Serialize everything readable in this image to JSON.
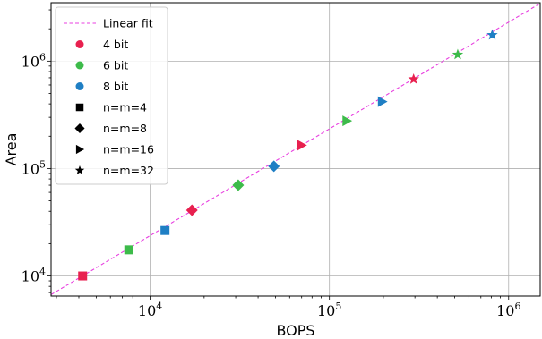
{
  "chart_data": {
    "type": "scatter",
    "xlabel": "BOPS",
    "ylabel": "Area",
    "x_scale": "log",
    "y_scale": "log",
    "xlim": [
      2800,
      1500000
    ],
    "ylim": [
      6500,
      3500000
    ],
    "grid": true,
    "legend_position": "top-left",
    "x_ticks": [
      {
        "value": 10000,
        "label": "10^4"
      },
      {
        "value": 100000,
        "label": "10^5"
      },
      {
        "value": 1000000,
        "label": "10^6"
      }
    ],
    "y_ticks": [
      {
        "value": 10000,
        "label": "10^4"
      },
      {
        "value": 100000,
        "label": "10^5"
      },
      {
        "value": 1000000,
        "label": "10^6"
      }
    ],
    "fit_line": {
      "name": "Linear fit",
      "color": "#e83fe0",
      "x": [
        2800,
        1500000
      ],
      "y": [
        6700,
        3450000
      ]
    },
    "color_legend": [
      {
        "name": "4 bit",
        "color": "#e8204f"
      },
      {
        "name": "6 bit",
        "color": "#3dbb4a"
      },
      {
        "name": "8 bit",
        "color": "#1f7fc4"
      }
    ],
    "marker_legend": [
      {
        "name": "n=m=4",
        "marker": "square"
      },
      {
        "name": "n=m=8",
        "marker": "diamond"
      },
      {
        "name": "n=m=16",
        "marker": "triangle-right"
      },
      {
        "name": "n=m=32",
        "marker": "star"
      }
    ],
    "points": [
      {
        "bits": "4 bit",
        "size": "n=m=4",
        "marker": "square",
        "color": "#e8204f",
        "x": 4200,
        "y": 10000
      },
      {
        "bits": "6 bit",
        "size": "n=m=4",
        "marker": "square",
        "color": "#3dbb4a",
        "x": 7600,
        "y": 17500
      },
      {
        "bits": "8 bit",
        "size": "n=m=4",
        "marker": "square",
        "color": "#1f7fc4",
        "x": 12100,
        "y": 26500
      },
      {
        "bits": "4 bit",
        "size": "n=m=8",
        "marker": "diamond",
        "color": "#e8204f",
        "x": 17100,
        "y": 41000
      },
      {
        "bits": "6 bit",
        "size": "n=m=8",
        "marker": "diamond",
        "color": "#3dbb4a",
        "x": 31000,
        "y": 70000
      },
      {
        "bits": "8 bit",
        "size": "n=m=8",
        "marker": "diamond",
        "color": "#1f7fc4",
        "x": 49000,
        "y": 105000
      },
      {
        "bits": "4 bit",
        "size": "n=m=16",
        "marker": "triangle-right",
        "color": "#e8204f",
        "x": 70000,
        "y": 165000
      },
      {
        "bits": "6 bit",
        "size": "n=m=16",
        "marker": "triangle-right",
        "color": "#3dbb4a",
        "x": 125000,
        "y": 278000
      },
      {
        "bits": "8 bit",
        "size": "n=m=16",
        "marker": "triangle-right",
        "color": "#1f7fc4",
        "x": 197000,
        "y": 420000
      },
      {
        "bits": "4 bit",
        "size": "n=m=32",
        "marker": "star",
        "color": "#e8204f",
        "x": 295000,
        "y": 680000
      },
      {
        "bits": "6 bit",
        "size": "n=m=32",
        "marker": "star",
        "color": "#3dbb4a",
        "x": 520000,
        "y": 1150000
      },
      {
        "bits": "8 bit",
        "size": "n=m=32",
        "marker": "star",
        "color": "#1f7fc4",
        "x": 810000,
        "y": 1750000
      }
    ]
  }
}
